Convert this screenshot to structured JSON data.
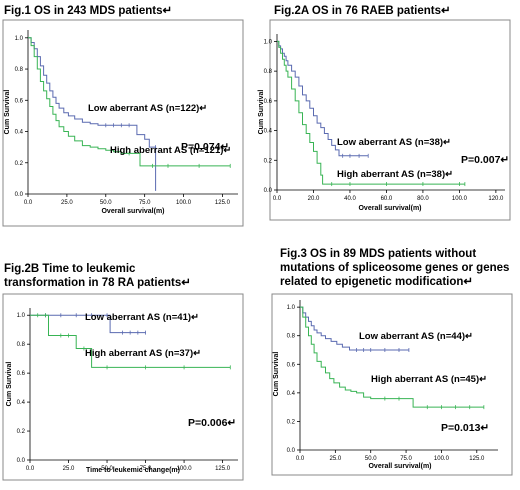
{
  "figures": [
    {
      "title_lines": [
        "Fig.1 OS in 243 MDS patients↵"
      ],
      "annotation": "P=0.074↵"
    },
    {
      "title_lines": [
        "Fig.2A OS in 76 RAEB patients↵"
      ],
      "annotation": "P=0.007↵"
    },
    {
      "title_lines": [
        "Fig.2B Time to leukemic",
        "transformation in 78 RA patients↵"
      ],
      "annotation": "P=0.006↵"
    },
    {
      "title_lines": [
        "Fig.3 OS in 89 MDS patients without",
        "mutations of spliceosome genes or genes",
        "related to epigenetic modification↵"
      ],
      "annotation": "P=0.013↵"
    }
  ],
  "colors": {
    "low": "#5a6ab0",
    "high": "#38b454",
    "axis": "#000000"
  },
  "chart_data": [
    {
      "type": "line",
      "title": "Fig.1 OS in 243 MDS patients↵",
      "xlabel": "Overall survival(m)",
      "ylabel": "Cum Survival",
      "xlim": [
        0,
        135
      ],
      "ylim": [
        0,
        1.05
      ],
      "x_ticks": [
        "0.0",
        "25.0",
        "50.0",
        "75.0",
        "100.0",
        "125.0"
      ],
      "y_ticks": [
        "0.0",
        "0.2",
        "0.4",
        "0.6",
        "0.8",
        "1.0"
      ],
      "series": [
        {
          "name": "Low aberrant AS (n=122)↵",
          "color": "#5a6ab0",
          "x": [
            0,
            2,
            4,
            6,
            8,
            10,
            12,
            14,
            16,
            18,
            20,
            23,
            26,
            30,
            35,
            40,
            45,
            50,
            55,
            60,
            65,
            70,
            75,
            78,
            82,
            82
          ],
          "y": [
            1,
            0.97,
            0.93,
            0.88,
            0.82,
            0.76,
            0.71,
            0.66,
            0.62,
            0.58,
            0.55,
            0.52,
            0.5,
            0.48,
            0.46,
            0.45,
            0.44,
            0.44,
            0.44,
            0.44,
            0.44,
            0.38,
            0.35,
            0.3,
            0.3,
            0.02
          ]
        },
        {
          "name": "High aberrant AS (n=121)↵",
          "color": "#38b454",
          "x": [
            0,
            2,
            4,
            6,
            8,
            10,
            12,
            14,
            16,
            18,
            20,
            23,
            26,
            30,
            35,
            40,
            45,
            50,
            55,
            60,
            65,
            72,
            80,
            90,
            110,
            130
          ],
          "y": [
            1,
            0.95,
            0.88,
            0.8,
            0.72,
            0.66,
            0.61,
            0.56,
            0.51,
            0.47,
            0.43,
            0.4,
            0.37,
            0.34,
            0.31,
            0.3,
            0.29,
            0.28,
            0.27,
            0.26,
            0.26,
            0.18,
            0.18,
            0.18,
            0.18,
            0.18
          ]
        }
      ]
    },
    {
      "type": "line",
      "title": "Fig.2A OS in 76 RAEB patients↵",
      "xlabel": "Overall survival(m)",
      "ylabel": "Cum Survival",
      "xlim": [
        0,
        125
      ],
      "ylim": [
        0,
        1.05
      ],
      "x_ticks": [
        "0.0",
        "20.0",
        "40.0",
        "60.0",
        "80.0",
        "100.0",
        "120.0"
      ],
      "y_ticks": [
        "0.0",
        "0.2",
        "0.4",
        "0.6",
        "0.8",
        "1.0"
      ],
      "series": [
        {
          "name": "Low aberrant AS (n=38)↵",
          "color": "#5a6ab0",
          "x": [
            0,
            1,
            2,
            3,
            4,
            5,
            6,
            8,
            10,
            12,
            14,
            16,
            18,
            20,
            22,
            24,
            26,
            28,
            30,
            32,
            34,
            36,
            40,
            45,
            50
          ],
          "y": [
            1,
            0.97,
            0.95,
            0.92,
            0.9,
            0.87,
            0.84,
            0.8,
            0.76,
            0.7,
            0.64,
            0.6,
            0.55,
            0.5,
            0.45,
            0.42,
            0.38,
            0.34,
            0.3,
            0.27,
            0.23,
            0.23,
            0.23,
            0.23,
            0.23
          ]
        },
        {
          "name": "High aberrant AS (n=38)↵",
          "color": "#38b454",
          "x": [
            0,
            1,
            2,
            3,
            4,
            5,
            6,
            8,
            10,
            12,
            14,
            16,
            18,
            20,
            22,
            24,
            25,
            30,
            40,
            60,
            80,
            100,
            103
          ],
          "y": [
            1,
            0.96,
            0.92,
            0.88,
            0.84,
            0.8,
            0.76,
            0.68,
            0.6,
            0.52,
            0.44,
            0.38,
            0.32,
            0.26,
            0.18,
            0.1,
            0.04,
            0.04,
            0.04,
            0.04,
            0.04,
            0.04,
            0.04
          ]
        }
      ]
    },
    {
      "type": "line",
      "title": "Fig.2B Time to leukemic transformation in 78 RA patients↵",
      "xlabel": "Time to leukemic change(m)",
      "ylabel": "Cum Survival",
      "xlim": [
        0,
        135
      ],
      "ylim": [
        0,
        1.05
      ],
      "x_ticks": [
        "0.0",
        "25.0",
        "50.0",
        "75.0",
        "100.0",
        "125.0"
      ],
      "y_ticks": [
        "0.0",
        "0.2",
        "0.4",
        "0.6",
        "0.8",
        "1.0"
      ],
      "series": [
        {
          "name": "Low aberrant AS (n=41)↵",
          "color": "#5a6ab0",
          "x": [
            0,
            10,
            20,
            30,
            40,
            50,
            52,
            60,
            65,
            70,
            75
          ],
          "y": [
            1,
            1,
            1,
            1,
            1,
            1,
            0.88,
            0.88,
            0.88,
            0.88,
            0.88
          ]
        },
        {
          "name": "High aberrant AS (n=37)↵",
          "color": "#38b454",
          "x": [
            0,
            5,
            10,
            12,
            20,
            25,
            30,
            35,
            40,
            50,
            75,
            100,
            130
          ],
          "y": [
            1,
            1,
            1,
            0.86,
            0.86,
            0.86,
            0.77,
            0.77,
            0.64,
            0.64,
            0.64,
            0.64,
            0.64
          ]
        }
      ]
    },
    {
      "type": "line",
      "title": "Fig.3 OS in 89 MDS patients without mutations of spliceosome genes or genes related to epigenetic modification↵",
      "xlabel": "Overall survival(m)",
      "ylabel": "Cum Survival",
      "xlim": [
        0,
        140
      ],
      "ylim": [
        0,
        1.05
      ],
      "x_ticks": [
        "0.0",
        "25.0",
        "50.0",
        "75.0",
        "100.0",
        "125.0"
      ],
      "y_ticks": [
        "0.0",
        "0.2",
        "0.4",
        "0.6",
        "0.8",
        "1.0"
      ],
      "series": [
        {
          "name": "Low aberrant AS (n=44)↵",
          "color": "#5a6ab0",
          "x": [
            0,
            2,
            4,
            6,
            8,
            10,
            12,
            15,
            18,
            22,
            26,
            30,
            35,
            40,
            45,
            50,
            60,
            70,
            77
          ],
          "y": [
            1,
            0.96,
            0.93,
            0.9,
            0.87,
            0.84,
            0.82,
            0.8,
            0.78,
            0.76,
            0.74,
            0.72,
            0.7,
            0.7,
            0.7,
            0.7,
            0.7,
            0.7,
            0.7
          ]
        },
        {
          "name": "High aberrant AS (n=45)↵",
          "color": "#38b454",
          "x": [
            0,
            2,
            4,
            6,
            8,
            10,
            12,
            15,
            18,
            21,
            24,
            28,
            32,
            36,
            40,
            45,
            50,
            60,
            70,
            80,
            90,
            100,
            110,
            120,
            130
          ],
          "y": [
            1,
            0.93,
            0.86,
            0.8,
            0.74,
            0.68,
            0.62,
            0.58,
            0.54,
            0.5,
            0.47,
            0.44,
            0.42,
            0.41,
            0.4,
            0.37,
            0.36,
            0.36,
            0.36,
            0.3,
            0.3,
            0.3,
            0.3,
            0.3,
            0.3
          ]
        }
      ]
    }
  ]
}
